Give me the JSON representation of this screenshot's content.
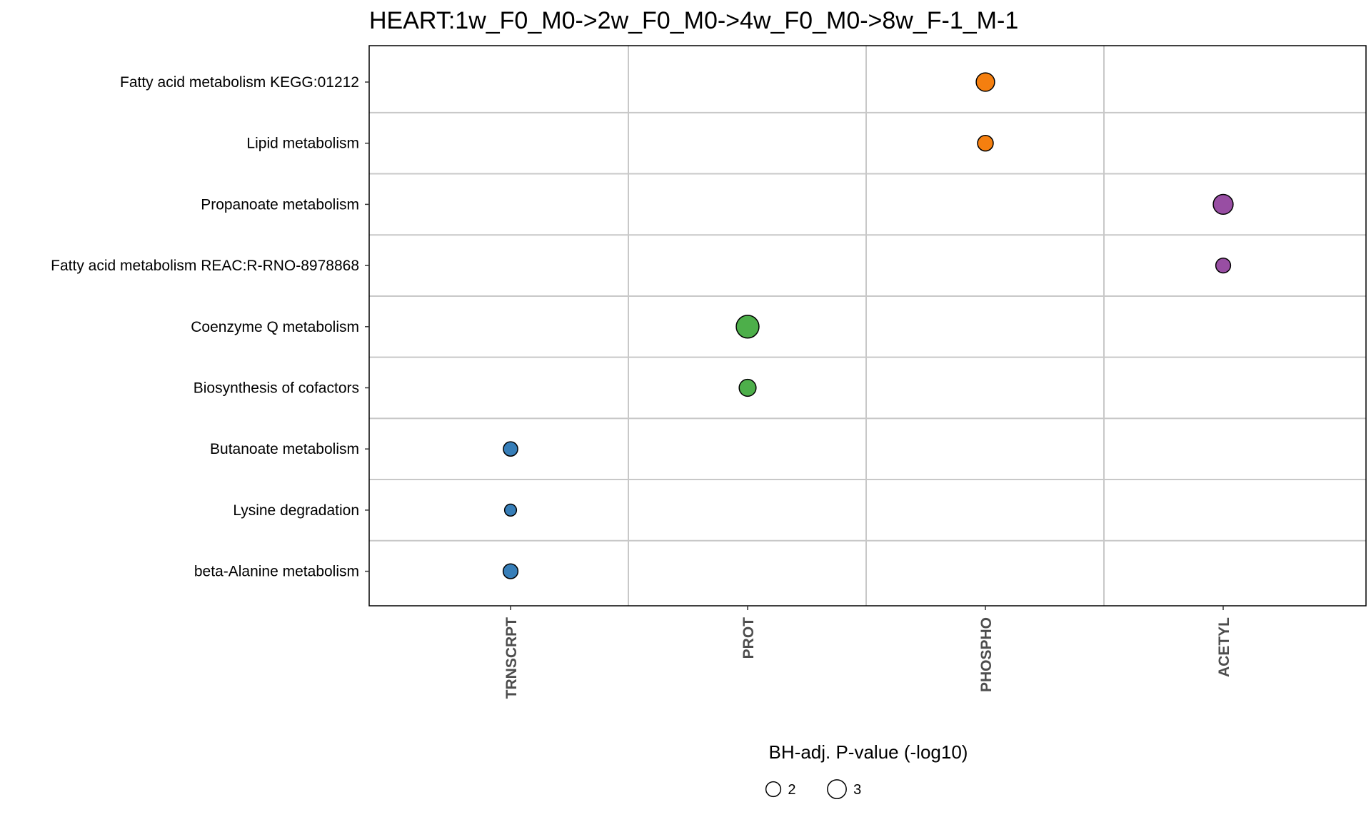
{
  "chart_data": {
    "type": "scatter",
    "title": "HEART:1w_F0_M0->2w_F0_M0->4w_F0_M0->8w_F-1_M-1",
    "xlabel": "",
    "ylabel": "",
    "x_categories": [
      "TRNSCRPT",
      "PROT",
      "PHOSPHO",
      "ACETYL"
    ],
    "y_categories": [
      "Fatty acid metabolism KEGG:01212",
      "Lipid metabolism",
      "Propanoate metabolism",
      "Fatty acid metabolism REAC:R-RNO-8978868",
      "Coenzyme Q metabolism",
      "Biosynthesis of cofactors",
      "Butanoate metabolism",
      "Lysine degradation",
      "beta-Alanine metabolism"
    ],
    "points": [
      {
        "x": "PHOSPHO",
        "y": "Fatty acid metabolism KEGG:01212",
        "size_value": 2.9,
        "color": "#F57F0F"
      },
      {
        "x": "PHOSPHO",
        "y": "Lipid metabolism",
        "size_value": 2.2,
        "color": "#F57F0F"
      },
      {
        "x": "ACETYL",
        "y": "Propanoate metabolism",
        "size_value": 3.3,
        "color": "#984EA3"
      },
      {
        "x": "ACETYL",
        "y": "Fatty acid metabolism REAC:R-RNO-8978868",
        "size_value": 2.0,
        "color": "#984EA3"
      },
      {
        "x": "PROT",
        "y": "Coenzyme Q metabolism",
        "size_value": 4.2,
        "color": "#4DAF4A"
      },
      {
        "x": "PROT",
        "y": "Biosynthesis of cofactors",
        "size_value": 2.5,
        "color": "#4DAF4A"
      },
      {
        "x": "TRNSCRPT",
        "y": "Butanoate metabolism",
        "size_value": 1.9,
        "color": "#377EB8"
      },
      {
        "x": "TRNSCRPT",
        "y": "Lysine degradation",
        "size_value": 1.4,
        "color": "#377EB8"
      },
      {
        "x": "TRNSCRPT",
        "y": "beta-Alanine metabolism",
        "size_value": 2.0,
        "color": "#377EB8"
      }
    ],
    "size_legend": {
      "title": "BH-adj. P-value (-log10)",
      "values": [
        2,
        3
      ]
    },
    "grid": true,
    "legend_position": "bottom"
  }
}
